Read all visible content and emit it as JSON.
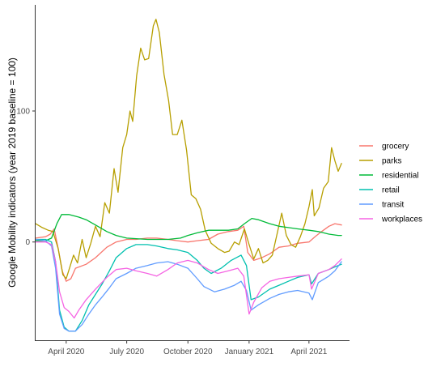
{
  "chart_data": {
    "type": "line",
    "title": "",
    "xlabel": "",
    "ylabel": "Google Mobility indicators (year 2019 baseline = 100)",
    "x_type": "date",
    "xlim": [
      "2020-02-15",
      "2021-06-01"
    ],
    "ylim": [
      -75,
      181
    ],
    "x_ticks": [
      {
        "date": "2020-04-01",
        "label": "April 2020"
      },
      {
        "date": "2020-07-01",
        "label": "July 2020"
      },
      {
        "date": "2020-10-01",
        "label": "October 2020"
      },
      {
        "date": "2021-01-01",
        "label": "January 2021"
      },
      {
        "date": "2021-04-01",
        "label": "April 2021"
      }
    ],
    "y_ticks": [
      {
        "value": 0,
        "label": "0"
      },
      {
        "value": 100,
        "label": "100"
      }
    ],
    "grid": false,
    "legend_position": "right",
    "series": [
      {
        "name": "grocery",
        "color": "#F8766D",
        "points": [
          [
            "2020-02-15",
            3
          ],
          [
            "2020-03-01",
            4
          ],
          [
            "2020-03-08",
            6
          ],
          [
            "2020-03-14",
            10
          ],
          [
            "2020-03-20",
            -5
          ],
          [
            "2020-03-26",
            -22
          ],
          [
            "2020-04-01",
            -30
          ],
          [
            "2020-04-08",
            -28
          ],
          [
            "2020-04-15",
            -20
          ],
          [
            "2020-05-01",
            -17
          ],
          [
            "2020-05-15",
            -12
          ],
          [
            "2020-06-01",
            -4
          ],
          [
            "2020-06-15",
            0
          ],
          [
            "2020-07-01",
            2
          ],
          [
            "2020-07-15",
            2
          ],
          [
            "2020-08-01",
            3
          ],
          [
            "2020-08-15",
            3
          ],
          [
            "2020-09-01",
            2
          ],
          [
            "2020-09-15",
            1
          ],
          [
            "2020-10-01",
            0
          ],
          [
            "2020-10-15",
            1
          ],
          [
            "2020-11-01",
            2
          ],
          [
            "2020-11-15",
            6
          ],
          [
            "2020-12-01",
            8
          ],
          [
            "2020-12-15",
            9
          ],
          [
            "2020-12-24",
            12
          ],
          [
            "2020-12-30",
            -8
          ],
          [
            "2021-01-08",
            -14
          ],
          [
            "2021-01-20",
            -12
          ],
          [
            "2021-02-01",
            -9
          ],
          [
            "2021-02-15",
            -4
          ],
          [
            "2021-03-01",
            -3
          ],
          [
            "2021-03-15",
            -1
          ],
          [
            "2021-04-01",
            0
          ],
          [
            "2021-04-10",
            4
          ],
          [
            "2021-04-20",
            8
          ],
          [
            "2021-05-01",
            12
          ],
          [
            "2021-05-10",
            14
          ],
          [
            "2021-05-20",
            13
          ]
        ]
      },
      {
        "name": "parks",
        "color": "#B79F00",
        "points": [
          [
            "2020-02-15",
            14
          ],
          [
            "2020-02-25",
            11
          ],
          [
            "2020-03-05",
            9
          ],
          [
            "2020-03-12",
            8
          ],
          [
            "2020-03-20",
            -5
          ],
          [
            "2020-03-27",
            -25
          ],
          [
            "2020-04-01",
            -28
          ],
          [
            "2020-04-06",
            -20
          ],
          [
            "2020-04-12",
            -10
          ],
          [
            "2020-04-18",
            -16
          ],
          [
            "2020-04-25",
            2
          ],
          [
            "2020-05-01",
            -12
          ],
          [
            "2020-05-08",
            -1
          ],
          [
            "2020-05-15",
            12
          ],
          [
            "2020-05-22",
            4
          ],
          [
            "2020-05-29",
            30
          ],
          [
            "2020-06-05",
            22
          ],
          [
            "2020-06-12",
            56
          ],
          [
            "2020-06-18",
            38
          ],
          [
            "2020-06-25",
            72
          ],
          [
            "2020-07-01",
            82
          ],
          [
            "2020-07-06",
            100
          ],
          [
            "2020-07-10",
            92
          ],
          [
            "2020-07-16",
            127
          ],
          [
            "2020-07-22",
            148
          ],
          [
            "2020-07-28",
            139
          ],
          [
            "2020-08-03",
            140
          ],
          [
            "2020-08-10",
            165
          ],
          [
            "2020-08-14",
            170
          ],
          [
            "2020-08-19",
            160
          ],
          [
            "2020-08-26",
            128
          ],
          [
            "2020-09-02",
            108
          ],
          [
            "2020-09-08",
            82
          ],
          [
            "2020-09-15",
            82
          ],
          [
            "2020-09-22",
            93
          ],
          [
            "2020-09-29",
            70
          ],
          [
            "2020-10-06",
            36
          ],
          [
            "2020-10-13",
            33
          ],
          [
            "2020-10-20",
            25
          ],
          [
            "2020-10-27",
            9
          ],
          [
            "2020-11-05",
            -1
          ],
          [
            "2020-11-15",
            -5
          ],
          [
            "2020-11-25",
            -8
          ],
          [
            "2020-12-02",
            -7
          ],
          [
            "2020-12-10",
            0
          ],
          [
            "2020-12-17",
            -2
          ],
          [
            "2020-12-25",
            10
          ],
          [
            "2021-01-01",
            -2
          ],
          [
            "2021-01-08",
            -13
          ],
          [
            "2021-01-15",
            -5
          ],
          [
            "2021-01-22",
            -16
          ],
          [
            "2021-01-29",
            -14
          ],
          [
            "2021-02-05",
            -10
          ],
          [
            "2021-02-12",
            6
          ],
          [
            "2021-02-19",
            22
          ],
          [
            "2021-02-26",
            5
          ],
          [
            "2021-03-05",
            -2
          ],
          [
            "2021-03-12",
            -4
          ],
          [
            "2021-03-19",
            4
          ],
          [
            "2021-03-26",
            14
          ],
          [
            "2021-04-01",
            27
          ],
          [
            "2021-04-06",
            40
          ],
          [
            "2021-04-09",
            20
          ],
          [
            "2021-04-16",
            26
          ],
          [
            "2021-04-23",
            41
          ],
          [
            "2021-04-30",
            46
          ],
          [
            "2021-05-05",
            72
          ],
          [
            "2021-05-10",
            62
          ],
          [
            "2021-05-15",
            54
          ],
          [
            "2021-05-20",
            60
          ]
        ]
      },
      {
        "name": "residential",
        "color": "#00BA38",
        "points": [
          [
            "2020-02-15",
            1
          ],
          [
            "2020-03-01",
            1
          ],
          [
            "2020-03-10",
            3
          ],
          [
            "2020-03-18",
            14
          ],
          [
            "2020-03-25",
            21
          ],
          [
            "2020-04-05",
            21
          ],
          [
            "2020-04-20",
            19
          ],
          [
            "2020-05-01",
            17
          ],
          [
            "2020-05-15",
            13
          ],
          [
            "2020-06-01",
            8
          ],
          [
            "2020-06-15",
            5
          ],
          [
            "2020-07-01",
            3
          ],
          [
            "2020-08-01",
            2
          ],
          [
            "2020-09-01",
            2
          ],
          [
            "2020-09-20",
            3
          ],
          [
            "2020-10-01",
            5
          ],
          [
            "2020-10-15",
            7
          ],
          [
            "2020-11-01",
            9
          ],
          [
            "2020-11-15",
            9
          ],
          [
            "2020-12-01",
            9
          ],
          [
            "2020-12-15",
            10
          ],
          [
            "2020-12-25",
            14
          ],
          [
            "2021-01-05",
            18
          ],
          [
            "2021-01-15",
            17
          ],
          [
            "2021-02-01",
            14
          ],
          [
            "2021-02-15",
            12
          ],
          [
            "2021-03-01",
            11
          ],
          [
            "2021-03-15",
            10
          ],
          [
            "2021-04-01",
            9
          ],
          [
            "2021-04-15",
            8
          ],
          [
            "2021-05-01",
            6
          ],
          [
            "2021-05-15",
            5
          ],
          [
            "2021-05-20",
            5
          ]
        ]
      },
      {
        "name": "retail",
        "color": "#00C0AF",
        "points": [
          [
            "2020-02-15",
            2
          ],
          [
            "2020-03-01",
            2
          ],
          [
            "2020-03-10",
            0
          ],
          [
            "2020-03-16",
            -15
          ],
          [
            "2020-03-22",
            -52
          ],
          [
            "2020-03-29",
            -65
          ],
          [
            "2020-04-05",
            -68
          ],
          [
            "2020-04-15",
            -68
          ],
          [
            "2020-04-25",
            -60
          ],
          [
            "2020-05-05",
            -48
          ],
          [
            "2020-05-15",
            -40
          ],
          [
            "2020-05-25",
            -32
          ],
          [
            "2020-06-05",
            -22
          ],
          [
            "2020-06-15",
            -12
          ],
          [
            "2020-07-01",
            -5
          ],
          [
            "2020-07-15",
            -2
          ],
          [
            "2020-08-01",
            -2
          ],
          [
            "2020-08-15",
            -3
          ],
          [
            "2020-09-01",
            -5
          ],
          [
            "2020-09-15",
            -6
          ],
          [
            "2020-10-01",
            -8
          ],
          [
            "2020-10-15",
            -14
          ],
          [
            "2020-10-25",
            -20
          ],
          [
            "2020-11-05",
            -24
          ],
          [
            "2020-11-20",
            -20
          ],
          [
            "2020-12-05",
            -14
          ],
          [
            "2020-12-20",
            -10
          ],
          [
            "2020-12-28",
            -18
          ],
          [
            "2021-01-04",
            -44
          ],
          [
            "2021-01-15",
            -42
          ],
          [
            "2021-02-01",
            -36
          ],
          [
            "2021-02-15",
            -33
          ],
          [
            "2021-03-01",
            -30
          ],
          [
            "2021-03-15",
            -27
          ],
          [
            "2021-04-01",
            -25
          ],
          [
            "2021-04-05",
            -32
          ],
          [
            "2021-04-15",
            -24
          ],
          [
            "2021-05-01",
            -21
          ],
          [
            "2021-05-10",
            -19
          ],
          [
            "2021-05-20",
            -17
          ]
        ]
      },
      {
        "name": "transit",
        "color": "#619CFF",
        "points": [
          [
            "2020-02-15",
            2
          ],
          [
            "2020-03-01",
            1
          ],
          [
            "2020-03-10",
            -3
          ],
          [
            "2020-03-16",
            -20
          ],
          [
            "2020-03-22",
            -55
          ],
          [
            "2020-03-29",
            -66
          ],
          [
            "2020-04-05",
            -68
          ],
          [
            "2020-04-15",
            -68
          ],
          [
            "2020-04-25",
            -63
          ],
          [
            "2020-05-05",
            -55
          ],
          [
            "2020-05-15",
            -48
          ],
          [
            "2020-05-25",
            -42
          ],
          [
            "2020-06-05",
            -35
          ],
          [
            "2020-06-15",
            -28
          ],
          [
            "2020-07-01",
            -24
          ],
          [
            "2020-07-15",
            -20
          ],
          [
            "2020-08-01",
            -18
          ],
          [
            "2020-08-15",
            -16
          ],
          [
            "2020-09-01",
            -15
          ],
          [
            "2020-09-15",
            -17
          ],
          [
            "2020-10-01",
            -20
          ],
          [
            "2020-10-15",
            -28
          ],
          [
            "2020-10-25",
            -34
          ],
          [
            "2020-11-10",
            -38
          ],
          [
            "2020-11-25",
            -36
          ],
          [
            "2020-12-10",
            -33
          ],
          [
            "2020-12-20",
            -30
          ],
          [
            "2020-12-28",
            -37
          ],
          [
            "2021-01-04",
            -52
          ],
          [
            "2021-01-15",
            -48
          ],
          [
            "2021-02-01",
            -43
          ],
          [
            "2021-02-15",
            -40
          ],
          [
            "2021-03-01",
            -38
          ],
          [
            "2021-03-15",
            -37
          ],
          [
            "2021-04-01",
            -39
          ],
          [
            "2021-04-06",
            -44
          ],
          [
            "2021-04-15",
            -31
          ],
          [
            "2021-05-01",
            -26
          ],
          [
            "2021-05-10",
            -22
          ],
          [
            "2021-05-20",
            -15
          ]
        ]
      },
      {
        "name": "workplaces",
        "color": "#F564E3",
        "points": [
          [
            "2020-02-15",
            0
          ],
          [
            "2020-03-01",
            0
          ],
          [
            "2020-03-10",
            -2
          ],
          [
            "2020-03-16",
            -15
          ],
          [
            "2020-03-22",
            -38
          ],
          [
            "2020-03-29",
            -50
          ],
          [
            "2020-04-05",
            -53
          ],
          [
            "2020-04-13",
            -58
          ],
          [
            "2020-04-20",
            -52
          ],
          [
            "2020-05-01",
            -44
          ],
          [
            "2020-05-15",
            -36
          ],
          [
            "2020-06-01",
            -27
          ],
          [
            "2020-06-15",
            -21
          ],
          [
            "2020-07-01",
            -20
          ],
          [
            "2020-07-15",
            -22
          ],
          [
            "2020-08-01",
            -24
          ],
          [
            "2020-08-15",
            -26
          ],
          [
            "2020-09-01",
            -21
          ],
          [
            "2020-09-15",
            -16
          ],
          [
            "2020-10-01",
            -14
          ],
          [
            "2020-10-15",
            -16
          ],
          [
            "2020-11-01",
            -21
          ],
          [
            "2020-11-15",
            -24
          ],
          [
            "2020-12-01",
            -22
          ],
          [
            "2020-12-15",
            -20
          ],
          [
            "2020-12-24",
            -26
          ],
          [
            "2021-01-01",
            -55
          ],
          [
            "2021-01-08",
            -46
          ],
          [
            "2021-01-20",
            -35
          ],
          [
            "2021-02-01",
            -30
          ],
          [
            "2021-02-15",
            -28
          ],
          [
            "2021-03-01",
            -27
          ],
          [
            "2021-03-15",
            -26
          ],
          [
            "2021-04-01",
            -25
          ],
          [
            "2021-04-05",
            -36
          ],
          [
            "2021-04-15",
            -24
          ],
          [
            "2021-05-01",
            -21
          ],
          [
            "2021-05-10",
            -18
          ],
          [
            "2021-05-20",
            -13
          ]
        ]
      }
    ]
  }
}
